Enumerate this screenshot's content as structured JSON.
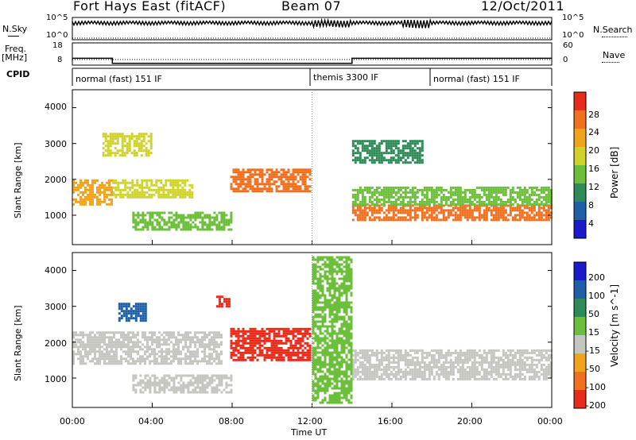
{
  "header": {
    "station": "Fort Hays East (fitACF)",
    "beam": "Beam 07",
    "date": "12/Oct/2011"
  },
  "side_labels": {
    "nsky": "N.Sky",
    "nsearch": "N.Search",
    "freq_line1": "Freq.",
    "freq_line2": "[MHz]",
    "nave": "Nave",
    "cpid": "CPID"
  },
  "noise_axis": {
    "left_top": "10^5",
    "left_bottom": "10^0",
    "right_top": "10^5",
    "right_bottom": "10^0"
  },
  "freq_axis": {
    "left_ticks": [
      "18",
      "8"
    ],
    "right_ticks": [
      "60",
      "0"
    ],
    "series": [
      {
        "name": "Freq",
        "hours": [
          0,
          2,
          2,
          14,
          14,
          24
        ],
        "values": [
          12.5,
          12.5,
          10.2,
          10.2,
          12.5,
          12.5
        ]
      },
      {
        "name": "Nave",
        "hours": [
          0,
          24
        ],
        "values": [
          5,
          5
        ]
      }
    ]
  },
  "cpid_modes": [
    {
      "label": "normal (fast) 151 IF",
      "start_hour": 0,
      "end_hour": 12
    },
    {
      "label": "themis 3300 IF",
      "start_hour": 12,
      "end_hour": 18
    },
    {
      "label": "normal (fast) 151 IF",
      "start_hour": 18,
      "end_hour": 24
    }
  ],
  "chart_data": [
    {
      "type": "heatmap",
      "title": "Power",
      "xlabel": "Time UT",
      "ylabel": "Slant Range [km]",
      "xlim_hours": [
        0,
        24
      ],
      "x_ticks": [
        "00:00",
        "04:00",
        "08:00",
        "12:00",
        "16:00",
        "20:00",
        "00:00"
      ],
      "ylim": [
        180,
        4500
      ],
      "y_ticks": [
        1000,
        2000,
        3000,
        4000
      ],
      "colorbar": {
        "label": "Power [dB]",
        "ticks": [
          4,
          8,
          12,
          16,
          20,
          24,
          28
        ],
        "colors": [
          "#1a1acc",
          "#1e5fa8",
          "#2e8b57",
          "#6cbf3a",
          "#cfd22a",
          "#f2a31b",
          "#f07020",
          "#e82b1a"
        ]
      },
      "regions": [
        {
          "start_hour": 7.9,
          "end_hour": 11.9,
          "range_km_low": 1700,
          "range_km_high": 2300,
          "power_db": 24
        },
        {
          "start_hour": 14.0,
          "end_hour": 24.0,
          "range_km_low": 900,
          "range_km_high": 1300,
          "power_db": 26
        },
        {
          "start_hour": 14.0,
          "end_hour": 24.0,
          "range_km_low": 1300,
          "range_km_high": 1800,
          "power_db": 12
        },
        {
          "start_hour": 2.0,
          "end_hour": 6.0,
          "range_km_low": 1500,
          "range_km_high": 2000,
          "power_db": 18
        },
        {
          "start_hour": 1.5,
          "end_hour": 4.0,
          "range_km_low": 2700,
          "range_km_high": 3300,
          "power_db": 16
        },
        {
          "start_hour": 3.0,
          "end_hour": 8.0,
          "range_km_low": 600,
          "range_km_high": 1100,
          "power_db": 14
        },
        {
          "start_hour": 14.0,
          "end_hour": 17.5,
          "range_km_low": 2500,
          "range_km_high": 3100,
          "power_db": 10
        },
        {
          "start_hour": 0.0,
          "end_hour": 2.0,
          "range_km_low": 1300,
          "range_km_high": 2000,
          "power_db": 20
        }
      ]
    },
    {
      "type": "heatmap",
      "title": "Velocity",
      "xlabel": "Time UT",
      "ylabel": "Slant Range [km]",
      "xlim_hours": [
        0,
        24
      ],
      "x_ticks": [
        "00:00",
        "04:00",
        "08:00",
        "12:00",
        "16:00",
        "20:00",
        "00:00"
      ],
      "ylim": [
        180,
        4500
      ],
      "y_ticks": [
        1000,
        2000,
        3000,
        4000
      ],
      "colorbar": {
        "label": "Velocity [m s^-1]",
        "ticks": [
          200,
          100,
          50,
          15,
          -15,
          -50,
          -100,
          -200
        ],
        "colors": [
          "#1a1acc",
          "#1e5fa8",
          "#2e8b57",
          "#6cbf3a",
          "#c6c6c0",
          "#f2a31b",
          "#f07020",
          "#e82b1a"
        ]
      },
      "regions": [
        {
          "start_hour": 7.9,
          "end_hour": 11.9,
          "range_km_low": 1500,
          "range_km_high": 2400,
          "velocity": -120
        },
        {
          "start_hour": 14.0,
          "end_hour": 24.0,
          "range_km_low": 1000,
          "range_km_high": 1800,
          "velocity": 0
        },
        {
          "start_hour": 0.0,
          "end_hour": 7.5,
          "range_km_low": 1400,
          "range_km_high": 2300,
          "velocity": 0
        },
        {
          "start_hour": 2.3,
          "end_hour": 3.7,
          "range_km_low": 2600,
          "range_km_high": 3100,
          "velocity": 180
        },
        {
          "start_hour": 12.0,
          "end_hour": 14.0,
          "range_km_low": 300,
          "range_km_high": 4400,
          "velocity": 30
        },
        {
          "start_hour": 3.0,
          "end_hour": 8.0,
          "range_km_low": 600,
          "range_km_high": 1100,
          "velocity": 0
        },
        {
          "start_hour": 7.2,
          "end_hour": 7.8,
          "range_km_low": 3000,
          "range_km_high": 3300,
          "velocity": -200
        }
      ]
    }
  ]
}
